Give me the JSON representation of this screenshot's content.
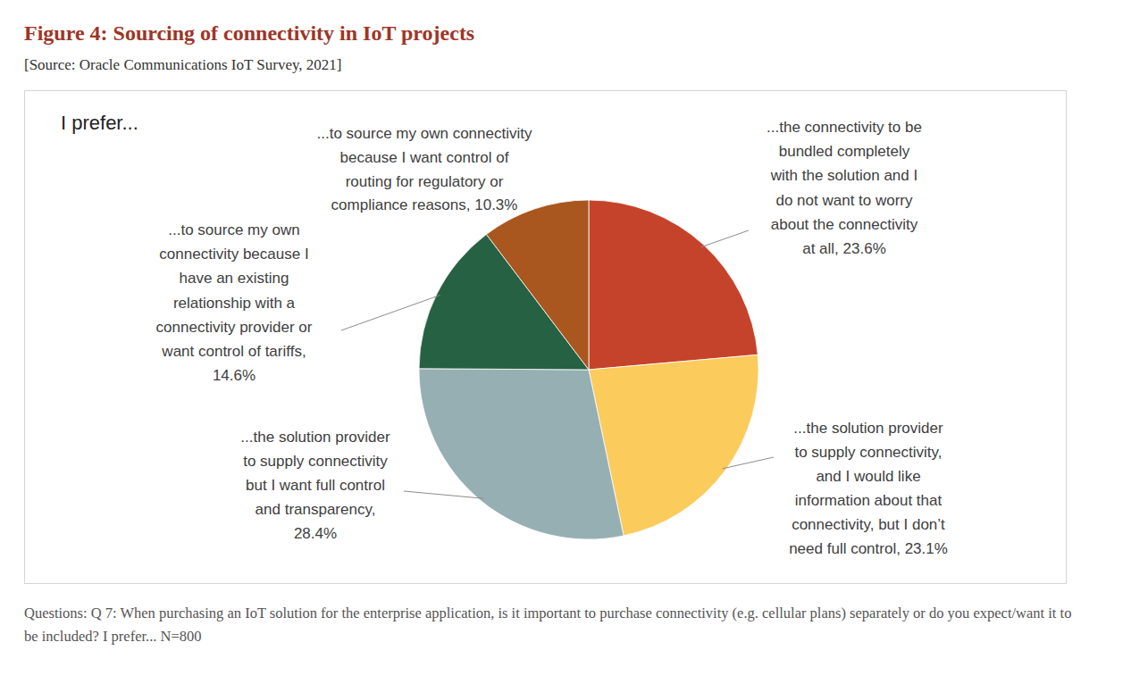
{
  "chart_data": {
    "type": "pie",
    "title": "Figure 4: Sourcing of connectivity in IoT projects",
    "subtitle": "[Source: Oracle Communications IoT Survey, 2021]",
    "annotations": [
      "I prefer...",
      "Questions: Q 7: When purchasing an IoT solution for the enterprise application, is it important to purchase connectivity (e.g. cellular plans) separately or do you expect/want it to be included? I prefer... N=800"
    ],
    "categories": [
      "...the connectivity to be bundled completely with the solution and I do not want to worry about the connectivity at all,",
      "...the solution provider to supply connectivity, and I would like information about that connectivity, but I don’t need full control,",
      "...the solution provider to supply connectivity but I want full control and transparency,",
      "...to source my own connectivity because I have an existing relationship with a connectivity provider or want control of tariffs,",
      "...to source my own connectivity because I want control of routing for regulatory or compliance reasons,"
    ],
    "values": [
      23.6,
      23.1,
      28.4,
      14.6,
      10.3
    ],
    "value_labels": [
      "23.6%",
      "23.1%",
      "28.4%",
      "14.6%",
      "10.3%"
    ],
    "colors": [
      "#c5432b",
      "#fbcb5c",
      "#96afb3",
      "#276143",
      "#a9561f"
    ],
    "data_labels": true
  }
}
